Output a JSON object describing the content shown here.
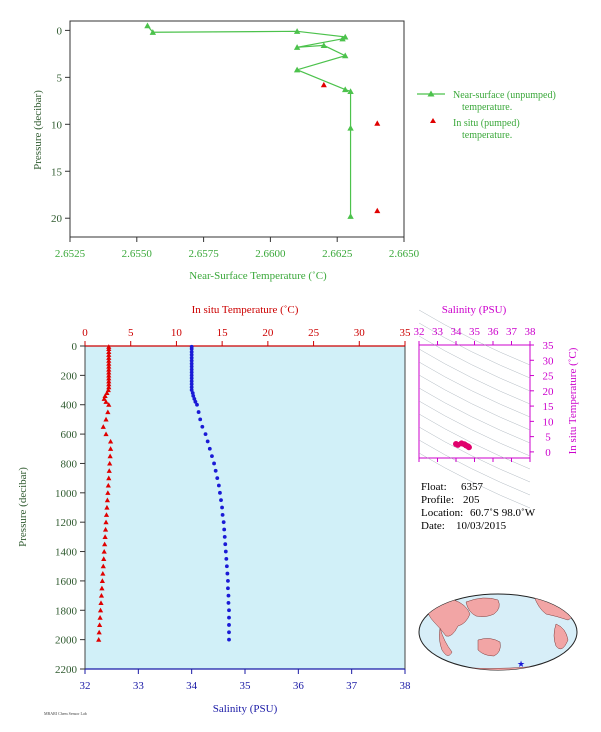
{
  "chart_data": [
    {
      "type": "line",
      "xlabel": "Near-Surface Temperature (˚C)",
      "ylabel": "Pressure (decibar)",
      "xlim": [
        2.6525,
        2.665
      ],
      "ylim": [
        22,
        -1
      ],
      "x_ticks": [
        "2.6525",
        "2.6550",
        "2.6575",
        "2.6600",
        "2.6625",
        "2.6650"
      ],
      "y_ticks": [
        "0",
        "5",
        "10",
        "15",
        "20"
      ],
      "legend": {
        "position": "right",
        "items": [
          "Near-surface (unpumped) temperature.",
          "In situ (pumped) temperature."
        ]
      },
      "series": [
        {
          "name": "Near-surface (unpumped) temperature.",
          "color": "#4cc24c",
          "marker": "triangle",
          "points": [
            [
              2.6554,
              -0.5
            ],
            [
              2.6556,
              0.2
            ],
            [
              2.661,
              0.1
            ],
            [
              2.6628,
              0.7
            ],
            [
              2.6627,
              0.9
            ],
            [
              2.661,
              1.8
            ],
            [
              2.662,
              1.6
            ],
            [
              2.6628,
              2.7
            ],
            [
              2.661,
              4.2
            ],
            [
              2.6628,
              6.3
            ],
            [
              2.663,
              6.5
            ],
            [
              2.663,
              10.4
            ],
            [
              2.663,
              19.8
            ]
          ]
        },
        {
          "name": "In situ (pumped) temperature.",
          "color": "#e00000",
          "marker": "triangle",
          "points": [
            [
              2.662,
              5.8
            ],
            [
              2.664,
              9.9
            ],
            [
              2.664,
              19.2
            ]
          ]
        }
      ]
    },
    {
      "type": "line",
      "ylabel": "Pressure (decibar)",
      "ylim": [
        2200,
        0
      ],
      "y_ticks": [
        "0",
        "200",
        "400",
        "600",
        "800",
        "1000",
        "1200",
        "1400",
        "1600",
        "1800",
        "2000",
        "2200"
      ],
      "top_axis": {
        "label": "In situ Temperature (˚C)",
        "range": [
          0,
          35
        ],
        "ticks": [
          "0",
          "5",
          "10",
          "15",
          "20",
          "25",
          "30",
          "35"
        ]
      },
      "bottom_axis": {
        "label": "Salinity (PSU)",
        "range": [
          32,
          38
        ],
        "ticks": [
          "32",
          "33",
          "34",
          "35",
          "36",
          "37",
          "38"
        ]
      },
      "series": [
        {
          "name": "In situ Temperature (˚C)",
          "color": "#e00000",
          "marker": "triangle",
          "points": [
            [
              2.6,
              5
            ],
            [
              2.6,
              20
            ],
            [
              2.6,
              40
            ],
            [
              2.6,
              60
            ],
            [
              2.6,
              80
            ],
            [
              2.6,
              100
            ],
            [
              2.6,
              120
            ],
            [
              2.6,
              140
            ],
            [
              2.6,
              160
            ],
            [
              2.6,
              180
            ],
            [
              2.6,
              200
            ],
            [
              2.6,
              220
            ],
            [
              2.6,
              240
            ],
            [
              2.6,
              260
            ],
            [
              2.6,
              280
            ],
            [
              2.55,
              300
            ],
            [
              2.4,
              320
            ],
            [
              2.2,
              340
            ],
            [
              2.1,
              360
            ],
            [
              2.3,
              380
            ],
            [
              2.6,
              400
            ],
            [
              2.5,
              450
            ],
            [
              2.3,
              500
            ],
            [
              2.0,
              550
            ],
            [
              2.3,
              600
            ],
            [
              2.8,
              650
            ],
            [
              2.8,
              700
            ],
            [
              2.75,
              750
            ],
            [
              2.7,
              800
            ],
            [
              2.65,
              850
            ],
            [
              2.6,
              900
            ],
            [
              2.55,
              950
            ],
            [
              2.5,
              1000
            ],
            [
              2.45,
              1050
            ],
            [
              2.4,
              1100
            ],
            [
              2.35,
              1150
            ],
            [
              2.3,
              1200
            ],
            [
              2.25,
              1250
            ],
            [
              2.2,
              1300
            ],
            [
              2.15,
              1350
            ],
            [
              2.1,
              1400
            ],
            [
              2.05,
              1450
            ],
            [
              2.0,
              1500
            ],
            [
              1.95,
              1550
            ],
            [
              1.9,
              1600
            ],
            [
              1.85,
              1650
            ],
            [
              1.8,
              1700
            ],
            [
              1.75,
              1750
            ],
            [
              1.7,
              1800
            ],
            [
              1.65,
              1850
            ],
            [
              1.6,
              1900
            ],
            [
              1.55,
              1950
            ],
            [
              1.5,
              2000
            ]
          ]
        },
        {
          "name": "Salinity (PSU)",
          "color": "#1a1ad6",
          "marker": "circle",
          "points": [
            [
              34.0,
              5
            ],
            [
              34.0,
              20
            ],
            [
              34.0,
              40
            ],
            [
              34.0,
              60
            ],
            [
              34.0,
              80
            ],
            [
              34.0,
              100
            ],
            [
              34.0,
              120
            ],
            [
              34.0,
              140
            ],
            [
              34.0,
              160
            ],
            [
              34.0,
              180
            ],
            [
              34.0,
              200
            ],
            [
              34.0,
              220
            ],
            [
              34.0,
              240
            ],
            [
              34.0,
              260
            ],
            [
              34.0,
              280
            ],
            [
              34.0,
              300
            ],
            [
              34.02,
              320
            ],
            [
              34.03,
              340
            ],
            [
              34.05,
              360
            ],
            [
              34.07,
              380
            ],
            [
              34.1,
              400
            ],
            [
              34.13,
              450
            ],
            [
              34.16,
              500
            ],
            [
              34.2,
              550
            ],
            [
              34.26,
              600
            ],
            [
              34.3,
              650
            ],
            [
              34.34,
              700
            ],
            [
              34.38,
              750
            ],
            [
              34.42,
              800
            ],
            [
              34.45,
              850
            ],
            [
              34.48,
              900
            ],
            [
              34.51,
              950
            ],
            [
              34.53,
              1000
            ],
            [
              34.55,
              1050
            ],
            [
              34.57,
              1100
            ],
            [
              34.58,
              1150
            ],
            [
              34.6,
              1200
            ],
            [
              34.61,
              1250
            ],
            [
              34.62,
              1300
            ],
            [
              34.63,
              1350
            ],
            [
              34.64,
              1400
            ],
            [
              34.65,
              1450
            ],
            [
              34.66,
              1500
            ],
            [
              34.67,
              1550
            ],
            [
              34.68,
              1600
            ],
            [
              34.68,
              1650
            ],
            [
              34.69,
              1700
            ],
            [
              34.69,
              1750
            ],
            [
              34.7,
              1800
            ],
            [
              34.7,
              1850
            ],
            [
              34.7,
              1900
            ],
            [
              34.7,
              1950
            ],
            [
              34.7,
              2000
            ]
          ]
        }
      ]
    },
    {
      "type": "scatter",
      "xlabel": "Salinity (PSU)",
      "ylabel": "In situ Temperature (˚C)",
      "xlim": [
        32,
        38
      ],
      "ylim": [
        -2,
        35
      ],
      "x_ticks": [
        "32",
        "33",
        "34",
        "35",
        "36",
        "37",
        "38"
      ],
      "y_ticks": [
        "0",
        "5",
        "10",
        "15",
        "20",
        "25",
        "30",
        "35"
      ],
      "series": [
        {
          "color": "#e0006c",
          "points": [
            [
              34.0,
              2.6
            ],
            [
              34.1,
              2.3
            ],
            [
              34.3,
              2.8
            ],
            [
              34.45,
              2.5
            ],
            [
              34.55,
              2.1
            ],
            [
              34.65,
              1.8
            ],
            [
              34.7,
              1.5
            ]
          ]
        }
      ]
    }
  ],
  "info": {
    "float_label": "Float:",
    "float_value": "6357",
    "profile_label": "Profile:",
    "profile_value": "205",
    "location_label": "Location:",
    "location_value": "60.7˚S  98.0˚W",
    "date_label": "Date:",
    "date_value": "10/03/2015"
  },
  "footer": {
    "stamp": "MBARI Chem Sensor Lab"
  }
}
